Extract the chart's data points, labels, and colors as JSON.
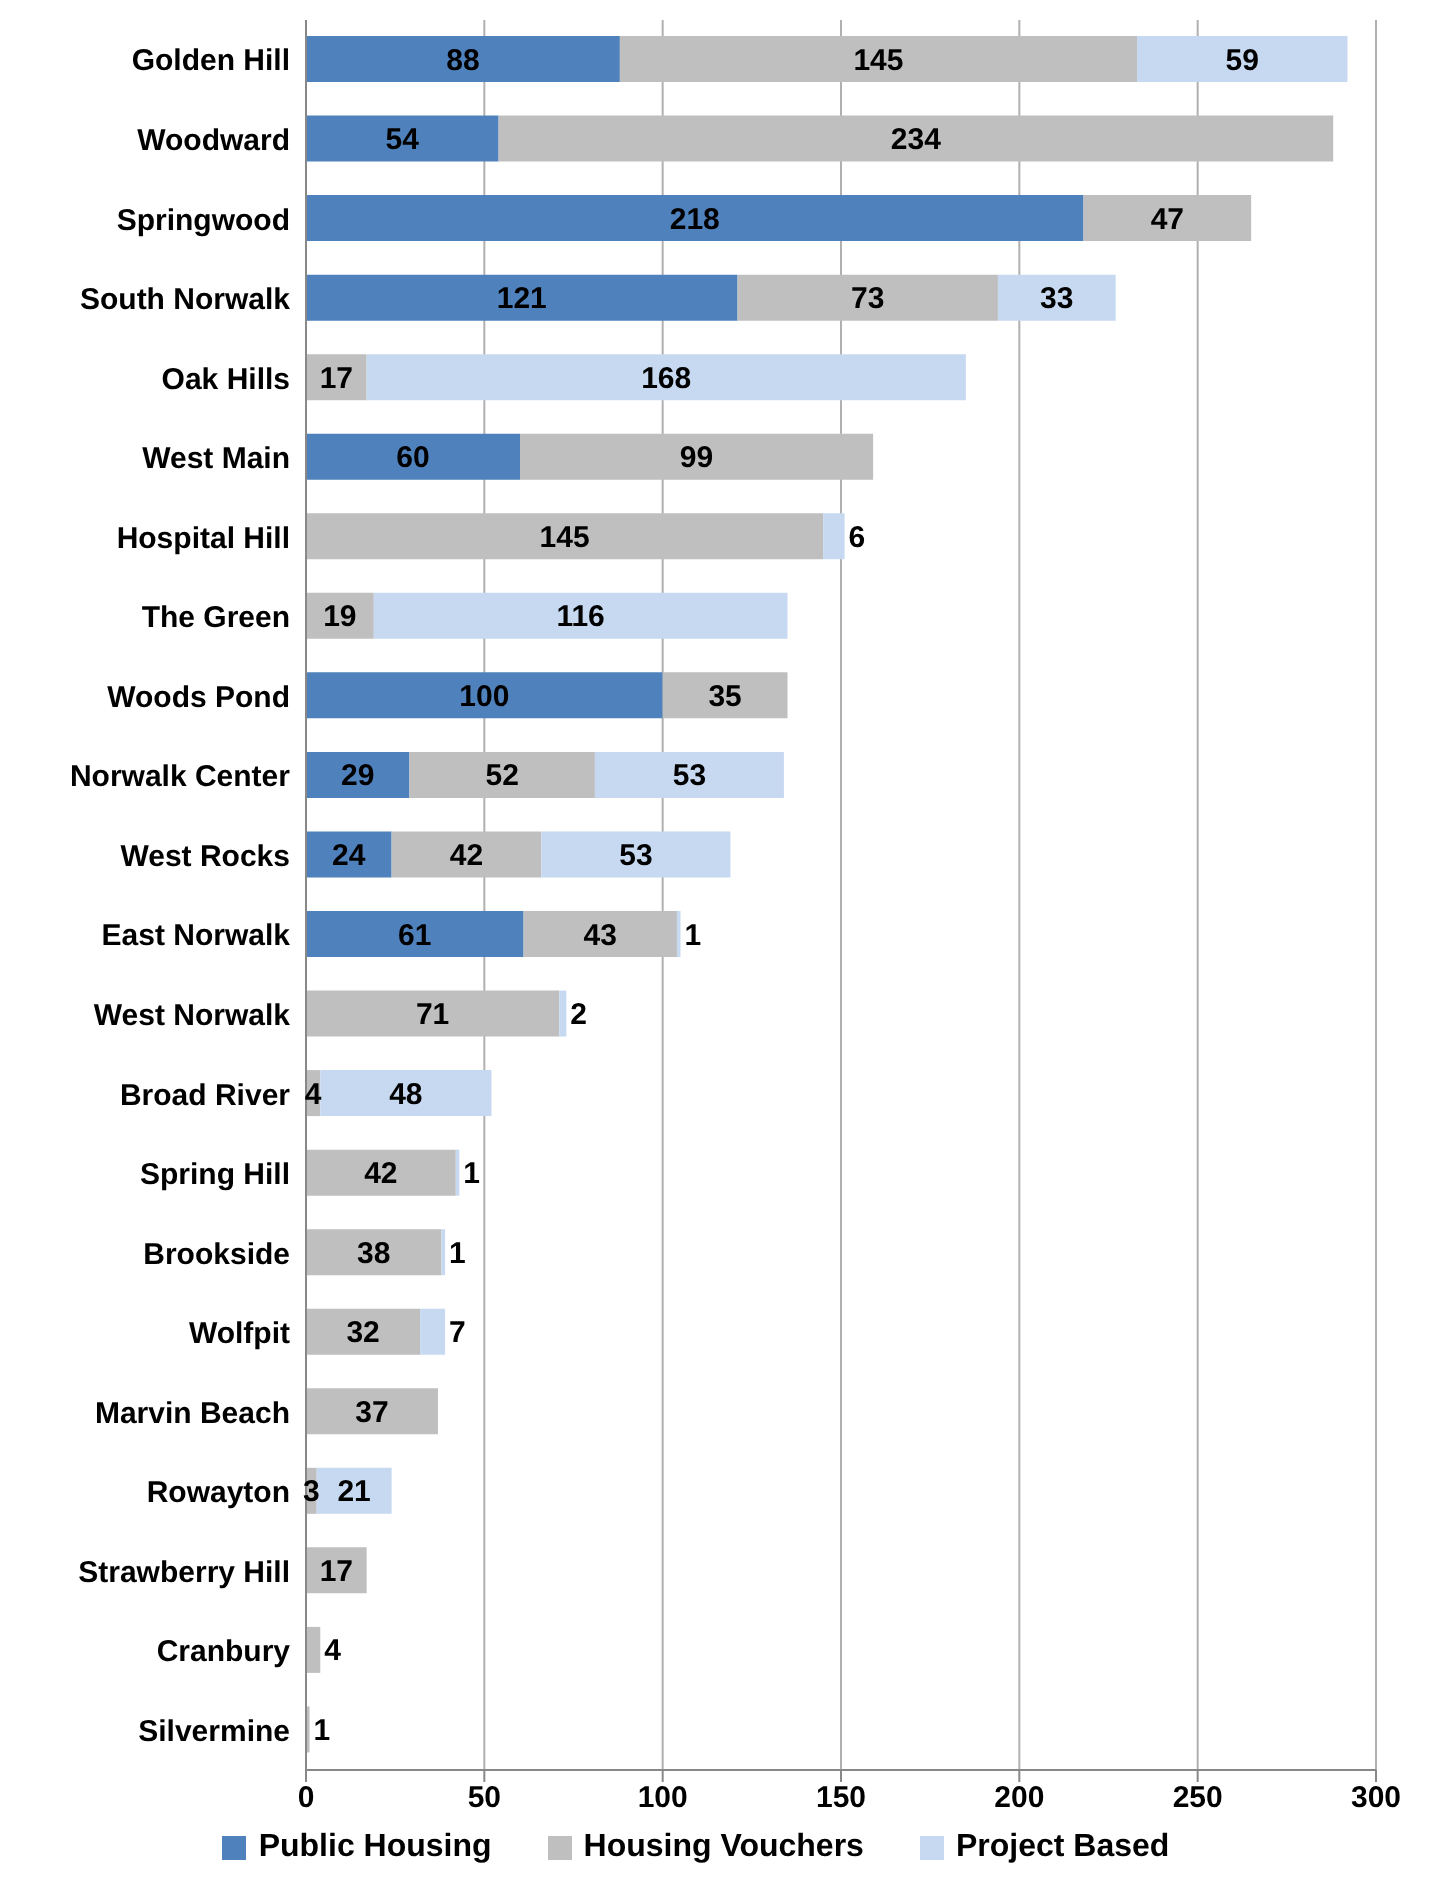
{
  "chart_data": {
    "type": "bar",
    "orientation": "horizontal",
    "stacked": true,
    "data_labels": true,
    "grid": "x",
    "legend": "bottom",
    "categories": [
      "Golden Hill",
      "Woodward",
      "Springwood",
      "South Norwalk",
      "Oak Hills",
      "West Main",
      "Hospital Hill",
      "The Green",
      "Woods Pond",
      "Norwalk Center",
      "West Rocks",
      "East Norwalk",
      "West Norwalk",
      "Broad River",
      "Spring Hill",
      "Brookside",
      "Wolfpit",
      "Marvin Beach",
      "Rowayton",
      "Strawberry Hill",
      "Cranbury",
      "Silvermine"
    ],
    "xlim": [
      0,
      300
    ],
    "xticks": [
      0,
      50,
      100,
      150,
      200,
      250,
      300
    ],
    "series": [
      {
        "name": "Public Housing",
        "color": "#4f81bd",
        "values": [
          88,
          54,
          218,
          121,
          null,
          60,
          null,
          null,
          100,
          29,
          24,
          61,
          null,
          null,
          null,
          null,
          null,
          null,
          null,
          null,
          null,
          null
        ]
      },
      {
        "name": "Housing Vouchers",
        "color": "#bfbfbf",
        "values": [
          145,
          234,
          47,
          73,
          17,
          99,
          145,
          19,
          35,
          52,
          42,
          43,
          71,
          4,
          42,
          38,
          32,
          37,
          3,
          17,
          4,
          1
        ]
      },
      {
        "name": "Project Based",
        "color": "#c6d9f1",
        "values": [
          59,
          null,
          null,
          33,
          168,
          null,
          6,
          116,
          null,
          53,
          53,
          1,
          2,
          48,
          1,
          1,
          7,
          null,
          21,
          null,
          null,
          null
        ]
      }
    ]
  }
}
